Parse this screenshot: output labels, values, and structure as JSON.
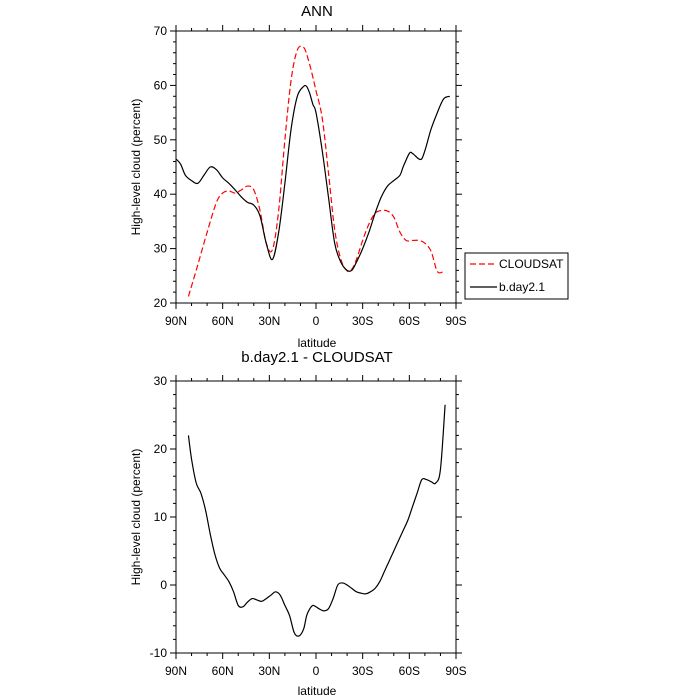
{
  "chart_data": [
    {
      "type": "line",
      "title": "ANN",
      "xlabel": "latitude",
      "ylabel": "High-level cloud (percent)",
      "xlim": [
        90,
        -90
      ],
      "ylim": [
        20,
        70
      ],
      "x_ticks": [
        90,
        60,
        30,
        0,
        -30,
        -60,
        -90
      ],
      "x_tick_labels": [
        "90N",
        "60N",
        "30N",
        "0",
        "30S",
        "60S",
        "90S"
      ],
      "y_ticks": [
        20,
        30,
        40,
        50,
        60,
        70
      ],
      "y_tick_labels": [
        "20",
        "30",
        "40",
        "50",
        "60",
        "70"
      ],
      "legend_position": "right",
      "series": [
        {
          "name": "CLOUDSAT",
          "color": "#ff0000",
          "dash": "dashed",
          "x": [
            82,
            76,
            70,
            64,
            60,
            56,
            52,
            48,
            44,
            40,
            36,
            32,
            28,
            24,
            20,
            16,
            12,
            8,
            5,
            2,
            0,
            -4,
            -8,
            -12,
            -16,
            -20,
            -23,
            -26,
            -30,
            -34,
            -38,
            -42,
            -46,
            -50,
            -54,
            -58,
            -62,
            -66,
            -70,
            -74,
            -78,
            -82
          ],
          "y": [
            21.2,
            27,
            33,
            38.5,
            40.2,
            40.6,
            40.2,
            40.8,
            41.5,
            40.8,
            37,
            31,
            29.8,
            37,
            50,
            61,
            66.5,
            67,
            64.8,
            61.5,
            59,
            54,
            44,
            33.5,
            28,
            25.9,
            26.2,
            28,
            31.5,
            34.5,
            36.5,
            37,
            36.9,
            35.8,
            33,
            31.5,
            31.5,
            31.5,
            31,
            29.5,
            25.8,
            25.8
          ]
        },
        {
          "name": "b.day2.1",
          "color": "#000000",
          "dash": "solid",
          "x": [
            90,
            87,
            84,
            80,
            76,
            72,
            68,
            64,
            60,
            56,
            52,
            48,
            44,
            40,
            36,
            32,
            28,
            24,
            20,
            16,
            12,
            8,
            6,
            4,
            2,
            0,
            -4,
            -8,
            -12,
            -16,
            -20,
            -23,
            -26,
            -30,
            -34,
            -38,
            -42,
            -46,
            -50,
            -54,
            -56,
            -60,
            -62,
            -64,
            -66,
            -68,
            -70,
            -72,
            -74,
            -78,
            -82,
            -86
          ],
          "y": [
            46.5,
            45.5,
            43.5,
            42.5,
            42,
            43.5,
            45,
            44.5,
            43,
            42,
            40.8,
            39.5,
            38.5,
            38,
            36,
            31,
            28,
            33,
            42,
            52,
            58,
            59.8,
            59.8,
            58.5,
            56.5,
            55,
            48,
            39.5,
            31,
            27.5,
            26,
            26,
            27.5,
            30,
            33,
            36.5,
            39.5,
            41.5,
            42.5,
            43.5,
            45,
            47.5,
            47.5,
            47,
            46.5,
            46.5,
            48,
            50,
            52,
            55,
            57.5,
            58
          ]
        }
      ]
    },
    {
      "type": "line",
      "title": "b.day2.1 - CLOUDSAT",
      "xlabel": "latitude",
      "ylabel": "High-level cloud (percent)",
      "xlim": [
        90,
        -90
      ],
      "ylim": [
        -10,
        30
      ],
      "x_ticks": [
        90,
        60,
        30,
        0,
        -30,
        -60,
        -90
      ],
      "x_tick_labels": [
        "90N",
        "60N",
        "30N",
        "0",
        "30S",
        "60S",
        "90S"
      ],
      "y_ticks": [
        -10,
        0,
        10,
        20,
        30
      ],
      "y_tick_labels": [
        "-10",
        "0",
        "10",
        "20",
        "30"
      ],
      "series": [
        {
          "color": "#000000",
          "dash": "solid",
          "x": [
            82,
            80,
            77,
            74,
            71,
            68,
            65,
            62,
            59,
            56,
            53,
            50,
            47,
            44,
            41,
            38,
            35,
            32,
            29,
            26,
            23,
            20,
            17,
            14,
            11,
            8,
            6,
            4,
            2,
            0,
            -2,
            -5,
            -8,
            -11,
            -14,
            -17,
            -20,
            -23,
            -26,
            -29,
            -32,
            -35,
            -38,
            -41,
            -44,
            -47,
            -50,
            -53,
            -56,
            -59,
            -62,
            -65,
            -68,
            -71,
            -74,
            -77,
            -80,
            -83
          ],
          "y": [
            22,
            18.5,
            15,
            13.5,
            11,
            7.5,
            4.5,
            2.5,
            1.5,
            0.5,
            -1,
            -3,
            -3.2,
            -2.5,
            -2,
            -2.2,
            -2.4,
            -2,
            -1.5,
            -1,
            -1.5,
            -3,
            -4.5,
            -7,
            -7.5,
            -6.5,
            -4.5,
            -3.5,
            -3,
            -3.2,
            -3.5,
            -3.8,
            -3.5,
            -2,
            0,
            0.3,
            0,
            -0.5,
            -1,
            -1.2,
            -1.3,
            -1,
            -0.5,
            0.5,
            2,
            3.5,
            5,
            6.5,
            8,
            9.5,
            11.5,
            13.5,
            15.5,
            15.5,
            15.2,
            15,
            17,
            26.5
          ]
        }
      ]
    }
  ]
}
